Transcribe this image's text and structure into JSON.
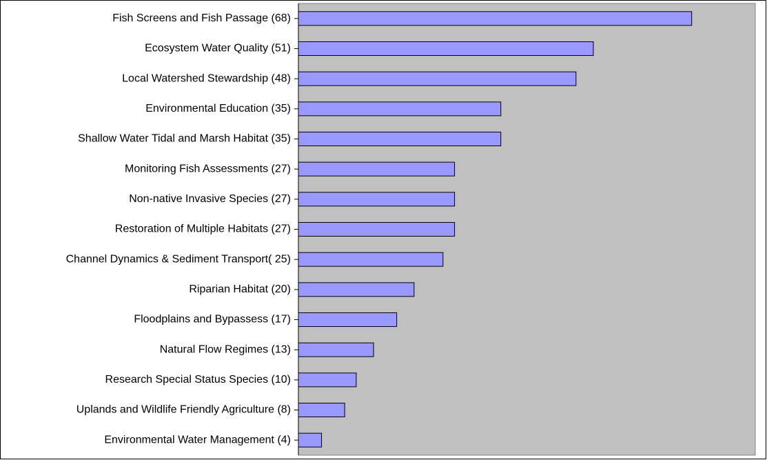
{
  "chart_data": {
    "type": "bar",
    "orientation": "horizontal",
    "categories": [
      "Fish Screens and Fish Passage (68)",
      "Ecosystem Water Quality (51)",
      "Local Watershed Stewardship (48)",
      "Environmental Education (35)",
      "Shallow Water Tidal and Marsh Habitat (35)",
      "Monitoring Fish Assessments (27)",
      "Non-native Invasive Species (27)",
      "Restoration of Multiple Habitats (27)",
      "Channel Dynamics & Sediment Transport( 25)",
      "Riparian Habitat (20)",
      "Floodplains and Bypassess (17)",
      "Natural Flow Regimes (13)",
      "Research Special Status Species (10)",
      "Uplands and Wildlife Friendly Agriculture (8)",
      "Environmental Water Management (4)"
    ],
    "values": [
      68,
      51,
      48,
      35,
      35,
      27,
      27,
      27,
      25,
      20,
      17,
      13,
      10,
      8,
      4
    ],
    "color": "#9999ff",
    "xlim": [
      0,
      79
    ]
  }
}
